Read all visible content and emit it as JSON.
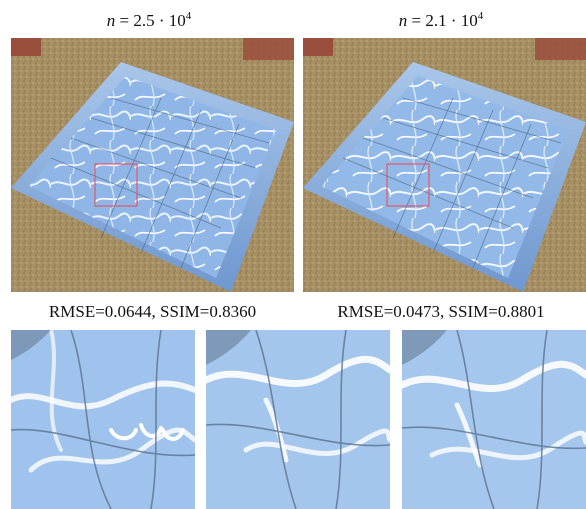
{
  "top_panels": [
    {
      "n_var": "n",
      "n_eq": " = ",
      "n_mantissa": "2.5 · 10",
      "n_exp": "4",
      "metrics": "RMSE=0.0644, SSIM=0.8360"
    },
    {
      "n_var": "n",
      "n_eq": " = ",
      "n_mantissa": "2.1 · 10",
      "n_exp": "4",
      "metrics": "RMSE=0.0473, SSIM=0.8801"
    }
  ],
  "colors": {
    "water": "#9fc3ec",
    "caustic": "#ffffff",
    "sand": "#a89065",
    "pool_wall": "#7fa6d6",
    "crop_box": "#e05a6a"
  },
  "insets": [
    "crop-left",
    "crop-middle",
    "crop-right"
  ]
}
